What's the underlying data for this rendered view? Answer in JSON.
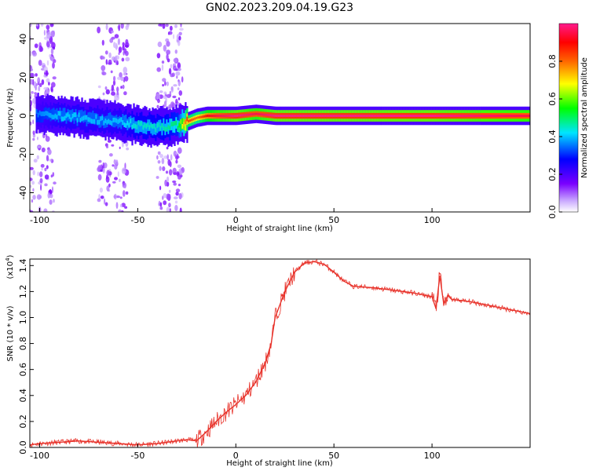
{
  "title": "GN02.2023.209.04.19.G23",
  "chart_data": [
    {
      "type": "heatmap",
      "xlabel": "Height of straight line (km)",
      "ylabel": "Frequency (Hz)",
      "xlim": [
        -105,
        150
      ],
      "ylim": [
        -50,
        48
      ],
      "xticks": [
        -100,
        -50,
        0,
        50,
        100
      ],
      "yticks": [
        -40,
        -20,
        0,
        20,
        40
      ],
      "colorbar": {
        "label": "Normalized spectral amplitude",
        "range": [
          0,
          1
        ],
        "ticks": [
          "0.0",
          "0.2",
          "0.4",
          "0.6",
          "0.8"
        ],
        "colormap": [
          "#ffffff",
          "#7a00ff",
          "#0000ff",
          "#00e5ff",
          "#00ff00",
          "#ffff00",
          "#ff6600",
          "#ff0000",
          "#ff1a8c"
        ]
      },
      "ridge": {
        "x": [
          -102,
          -90,
          -80,
          -70,
          -60,
          -50,
          -40,
          -30,
          -25,
          -20,
          -15,
          -10,
          0,
          10,
          20,
          50,
          100,
          150
        ],
        "frequency": [
          1,
          0,
          -1,
          -2,
          -3,
          -5,
          -6,
          -5,
          -3,
          -1,
          0,
          0,
          0,
          1,
          0,
          0,
          0,
          0
        ],
        "peak_amplitude": [
          0.35,
          0.4,
          0.4,
          0.4,
          0.4,
          0.45,
          0.45,
          0.5,
          0.85,
          0.8,
          0.9,
          0.95,
          1.0,
          0.95,
          1.0,
          1.0,
          1.0,
          0.95
        ]
      },
      "scatter_regions_x": [
        [
          -105,
          -92
        ],
        [
          -70,
          -55
        ],
        [
          -40,
          -27
        ]
      ]
    },
    {
      "type": "line",
      "xlabel": "Height of straight line (km)",
      "ylabel": "SNR (10 * v/v)",
      "y_multiplier": "(x10",
      "y_multiplier_exp": "4",
      "y_multiplier_close": ")",
      "xlim": [
        -105,
        150
      ],
      "ylim": [
        0,
        1.45
      ],
      "xticks": [
        -100,
        -50,
        0,
        50,
        100
      ],
      "yticks": [
        0.0,
        0.2,
        0.4,
        0.6,
        0.8,
        1.0,
        1.2,
        1.4
      ],
      "series": [
        {
          "color": "#e8332b",
          "x": [
            -105,
            -100,
            -90,
            -80,
            -70,
            -60,
            -50,
            -40,
            -30,
            -25,
            -20,
            -15,
            -10,
            -5,
            0,
            5,
            10,
            15,
            18,
            20,
            25,
            30,
            35,
            40,
            45,
            50,
            55,
            60,
            70,
            80,
            90,
            100,
            102,
            104,
            106,
            108,
            110,
            120,
            130,
            140,
            150
          ],
          "y": [
            0.02,
            0.03,
            0.04,
            0.05,
            0.04,
            0.03,
            0.02,
            0.03,
            0.05,
            0.06,
            0.05,
            0.12,
            0.2,
            0.27,
            0.33,
            0.4,
            0.5,
            0.65,
            0.8,
            1.0,
            1.2,
            1.35,
            1.42,
            1.43,
            1.41,
            1.35,
            1.28,
            1.24,
            1.23,
            1.21,
            1.19,
            1.16,
            1.07,
            1.32,
            1.1,
            1.17,
            1.14,
            1.12,
            1.09,
            1.06,
            1.03
          ]
        }
      ]
    }
  ]
}
